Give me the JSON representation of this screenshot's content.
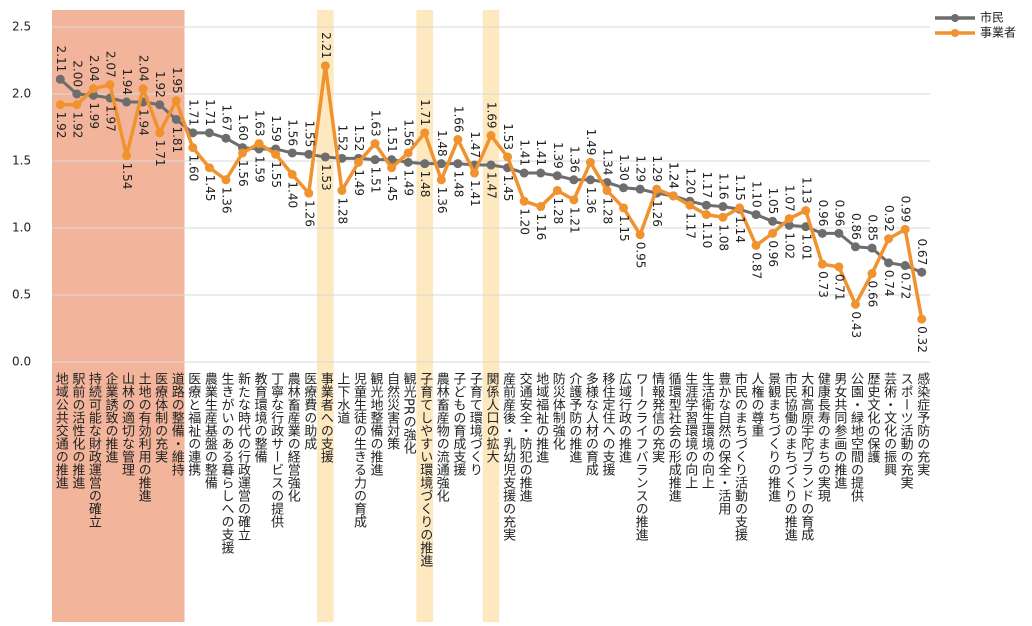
{
  "chart_data": {
    "type": "line",
    "categories": [
      "地域公共交通の推進",
      "駅前の活性化の推進",
      "持続可能な財政運営の確立",
      "企業誘致の推進",
      "山林の適切な管理",
      "土地の有効利用の推進",
      "医療体制の充実",
      "道路の整備・維持",
      "医療と福祉の連携",
      "農業生産基盤の整備",
      "生きがいのある暮らしへの支援",
      "新たな時代の行政運営の確立",
      "教育環境の整備",
      "丁寧な行政サービスの提供",
      "農林畜産業の経営強化",
      "医療費の助成",
      "事業者への支援",
      "上下水道",
      "児童生徒の生きる力の育成",
      "観光地整備の推進",
      "自然災害対策",
      "観光PRの強化",
      "子育てしやすい環境づくりの推進",
      "農林畜産物の流通強化",
      "子どもの育成支援",
      "子育て環境づくり",
      "関係人口の拡大",
      "産前産後・乳幼児支援の充実",
      "交通安全・防犯の推進",
      "地域福祉の推進",
      "防災体制強化",
      "介護予防の推進",
      "多様な人材の育成",
      "移住定住への支援",
      "広域行政の推進",
      "ワークライフバランスの推進",
      "情報発信の充実",
      "循環型社会の形成推進",
      "生涯学習環境の向上",
      "生活衛生環境の向上",
      "豊かな自然の保全・活用",
      "市民のまちづくり活動の支援",
      "人権の尊重",
      "景観まちづくりの推進",
      "市民協働のまちづくりの推進",
      "大和高原宇陀ブランドの育成",
      "健康長寿のまちの実現",
      "男女共同参画の推進",
      "公園・緑地空間の提供",
      "歴史文化の保護",
      "芸術・文化の振興",
      "スポーツ活動の充実",
      "感染症予防の充実"
    ],
    "series": [
      {
        "name": "市民",
        "color": "#6d6d6d",
        "label_color": "#222222",
        "values": [
          2.11,
          2.0,
          1.99,
          1.97,
          1.94,
          1.94,
          1.92,
          1.81,
          1.71,
          1.71,
          1.67,
          1.6,
          1.59,
          1.59,
          1.56,
          1.55,
          1.53,
          1.52,
          1.52,
          1.51,
          1.51,
          1.49,
          1.48,
          1.48,
          1.48,
          1.47,
          1.47,
          1.45,
          1.41,
          1.41,
          1.39,
          1.36,
          1.36,
          1.34,
          1.3,
          1.29,
          1.26,
          1.24,
          1.2,
          1.17,
          1.16,
          1.14,
          1.1,
          1.05,
          1.02,
          1.01,
          0.96,
          0.96,
          0.86,
          0.85,
          0.74,
          0.72,
          0.67
        ],
        "value_labels": [
          "2.11",
          "2.00",
          "1.99",
          "1.97",
          "1.94",
          "1.94",
          "1.92",
          "1.81",
          "1.71",
          "1.71",
          "1.67",
          "1.60",
          "1.59",
          "1.59",
          "1.56",
          "1.55",
          "1.53",
          "1.52",
          "1.52",
          "1.51",
          "1.51",
          "1.49",
          "1.48",
          "1.48",
          "1.48",
          "1.47",
          "1.47",
          "1.45",
          "1.41",
          "1.41",
          "1.39",
          "1.36",
          "1.36",
          "1.34",
          "1.30",
          "1.29",
          "1.26",
          "1.24",
          "1.20",
          "1.17",
          "1.16",
          "1.14",
          "1.10",
          "1.05",
          "1.02",
          "1.01",
          "0.96",
          "0.96",
          "0.86",
          "0.85",
          "0.74",
          "0.72",
          "0.67"
        ]
      },
      {
        "name": "事業者",
        "color": "#f0922e",
        "label_color": "#f0a040",
        "values": [
          1.92,
          1.92,
          2.04,
          2.07,
          1.54,
          2.04,
          1.71,
          1.95,
          1.6,
          1.45,
          1.36,
          1.56,
          1.63,
          1.55,
          1.4,
          1.26,
          2.21,
          1.28,
          1.49,
          1.63,
          1.45,
          1.56,
          1.71,
          1.36,
          1.66,
          1.41,
          1.69,
          1.53,
          1.2,
          1.16,
          1.28,
          1.21,
          1.49,
          1.28,
          1.15,
          0.95,
          1.29,
          1.24,
          1.17,
          1.1,
          1.08,
          1.15,
          0.87,
          0.96,
          1.07,
          1.13,
          0.73,
          0.71,
          0.43,
          0.66,
          0.92,
          0.99,
          0.32
        ],
        "value_labels": [
          "1.92",
          "1.92",
          "2.04",
          "2.07",
          "1.54",
          "2.04",
          "1.71",
          "1.95",
          "1.60",
          "1.45",
          "1.36",
          "1.56",
          "1.63",
          "1.55",
          "1.40",
          "1.26",
          "2.21",
          "1.28",
          "1.49",
          "1.63",
          "1.45",
          "1.56",
          "1.71",
          "1.36",
          "1.66",
          "1.41",
          "1.69",
          "1.53",
          "1.20",
          "1.16",
          "1.28",
          "1.21",
          "1.49",
          "1.28",
          "1.15",
          "0.95",
          "1.29",
          "1.24",
          "1.17",
          "1.10",
          "1.08",
          "1.15",
          "0.87",
          "0.96",
          "1.07",
          "1.13",
          "0.73",
          "0.71",
          "0.43",
          "0.66",
          "0.92",
          "0.99",
          "0.32"
        ]
      }
    ],
    "highlights": [
      {
        "from": 0,
        "to": 7,
        "color": "#f2b59c"
      },
      {
        "from": 16,
        "to": 16,
        "color": "#fde8c0"
      },
      {
        "from": 22,
        "to": 22,
        "color": "#fde8c0"
      },
      {
        "from": 26,
        "to": 26,
        "color": "#fde8c0"
      }
    ],
    "ylim": [
      0,
      2.5
    ],
    "yticks": [
      {
        "value": 0,
        "label": "0.0"
      },
      {
        "value": 0.5,
        "label": "0.5"
      },
      {
        "value": 1,
        "label": "1.0"
      },
      {
        "value": 1.5,
        "label": "1.5"
      },
      {
        "value": 2,
        "label": "2.0"
      },
      {
        "value": 2.5,
        "label": "2.5"
      }
    ],
    "grid": true,
    "legend": "top-right"
  }
}
